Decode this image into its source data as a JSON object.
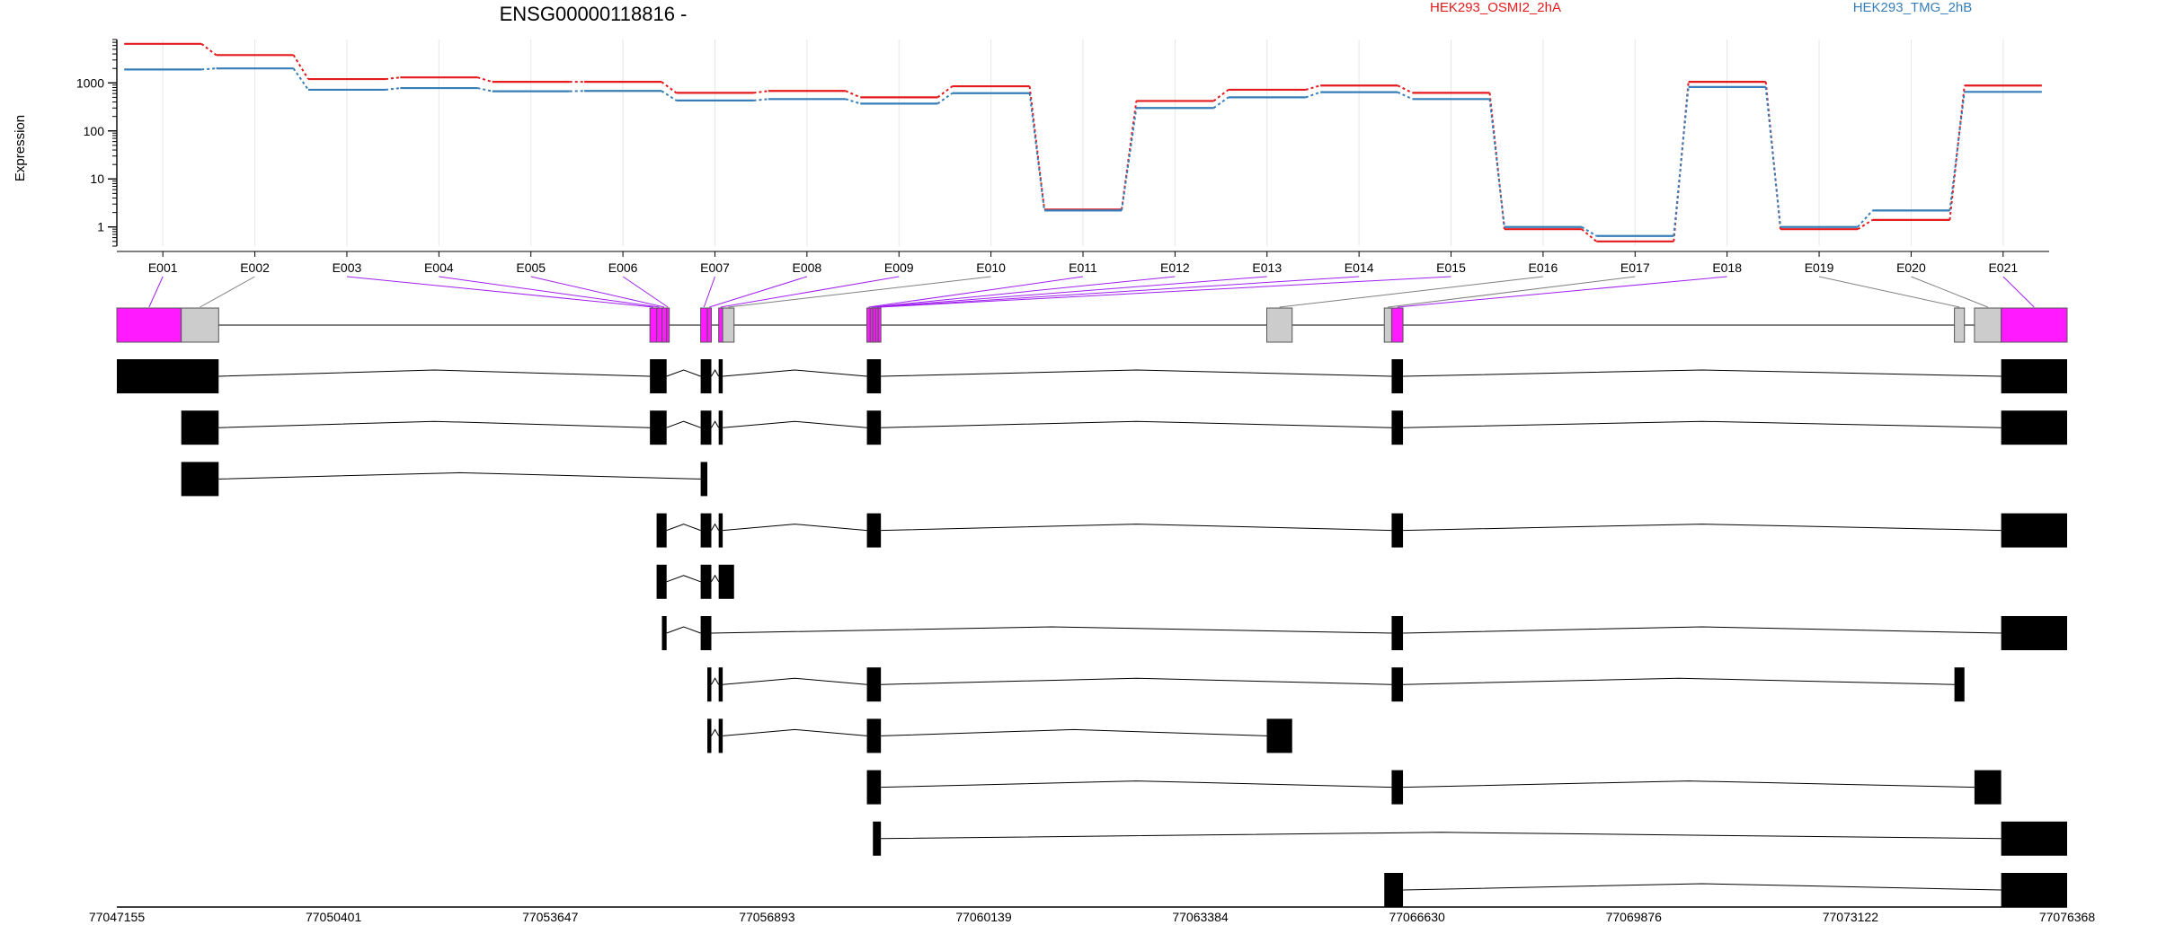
{
  "chart_data": {
    "type": "line",
    "title": "ENSG00000118816 -",
    "ylabel": "Expression",
    "yscale": "log",
    "yticks": [
      "1",
      "10",
      "100",
      "1000"
    ],
    "ylim": [
      0.4,
      8000
    ],
    "colors": {
      "HEK293_OSMI2_2hA": "#e41a1c",
      "HEK293_TMG_2hB": "#377eb8"
    },
    "legend": [
      "HEK293_OSMI2_2hA",
      "HEK293_TMG_2hB"
    ],
    "legend_placement": "top",
    "genomic_axis": {
      "start": 77047155,
      "end": 77076368,
      "tick_labels": [
        "77047155",
        "77050401",
        "77053647",
        "77056893",
        "77060139",
        "77063384",
        "77066630",
        "77069876",
        "77073122",
        "77076368"
      ]
    },
    "exons": [
      {
        "name": "E001",
        "start": 77047155,
        "end": 77048120,
        "highlight": true
      },
      {
        "name": "E002",
        "start": 77048120,
        "end": 77048680,
        "highlight": false
      },
      {
        "name": "E003",
        "start": 77055140,
        "end": 77055240,
        "highlight": true
      },
      {
        "name": "E004",
        "start": 77055240,
        "end": 77055320,
        "highlight": true
      },
      {
        "name": "E005",
        "start": 77055320,
        "end": 77055390,
        "highlight": true
      },
      {
        "name": "E006",
        "start": 77055390,
        "end": 77055430,
        "highlight": true
      },
      {
        "name": "E007",
        "start": 77055900,
        "end": 77056000,
        "highlight": true
      },
      {
        "name": "E008",
        "start": 77056000,
        "end": 77056060,
        "highlight": true
      },
      {
        "name": "E009",
        "start": 77056170,
        "end": 77056230,
        "highlight": true
      },
      {
        "name": "E010",
        "start": 77056230,
        "end": 77056400,
        "highlight": false
      },
      {
        "name": "E011",
        "start": 77058390,
        "end": 77058440,
        "highlight": true
      },
      {
        "name": "E012",
        "start": 77058440,
        "end": 77058480,
        "highlight": true
      },
      {
        "name": "E013",
        "start": 77058480,
        "end": 77058520,
        "highlight": true
      },
      {
        "name": "E014",
        "start": 77058520,
        "end": 77058560,
        "highlight": true
      },
      {
        "name": "E015",
        "start": 77058560,
        "end": 77058600,
        "highlight": true
      },
      {
        "name": "E016",
        "start": 77064380,
        "end": 77064760,
        "highlight": false
      },
      {
        "name": "E017",
        "start": 77066140,
        "end": 77066250,
        "highlight": false
      },
      {
        "name": "E018",
        "start": 77066250,
        "end": 77066420,
        "highlight": true
      },
      {
        "name": "E019",
        "start": 77074680,
        "end": 77074830,
        "highlight": false
      },
      {
        "name": "E020",
        "start": 77074980,
        "end": 77075380,
        "highlight": false
      },
      {
        "name": "E021",
        "start": 77075380,
        "end": 77076368,
        "highlight": true
      }
    ],
    "series": [
      {
        "name": "HEK293_OSMI2_2hA",
        "values": [
          6500,
          3800,
          1200,
          1300,
          1050,
          1050,
          620,
          680,
          500,
          850,
          2.3,
          420,
          720,
          880,
          620,
          0.9,
          0.5,
          1050,
          0.9,
          1.4,
          880
        ]
      },
      {
        "name": "HEK293_TMG_2hB",
        "values": [
          1900,
          2000,
          720,
          780,
          670,
          680,
          430,
          460,
          370,
          610,
          2.2,
          300,
          500,
          640,
          460,
          1.0,
          0.65,
          820,
          1.0,
          2.2,
          650
        ]
      }
    ],
    "transcripts": [
      [
        [
          77047155,
          77048680
        ],
        [
          77055140,
          77055390
        ],
        [
          77055900,
          77056060
        ],
        [
          77056170,
          77056230
        ],
        [
          77058390,
          77058600
        ],
        [
          77066250,
          77066420
        ],
        [
          77075380,
          77076368
        ]
      ],
      [
        [
          77048120,
          77048680
        ],
        [
          77055140,
          77055390
        ],
        [
          77055900,
          77056060
        ],
        [
          77056170,
          77056230
        ],
        [
          77058390,
          77058600
        ],
        [
          77066250,
          77066420
        ],
        [
          77075380,
          77076368
        ]
      ],
      [
        [
          77048120,
          77048680
        ],
        [
          77055900,
          77056000
        ]
      ],
      [
        [
          77055240,
          77055390
        ],
        [
          77055900,
          77056060
        ],
        [
          77056170,
          77056230
        ],
        [
          77058390,
          77058600
        ],
        [
          77066250,
          77066420
        ],
        [
          77075380,
          77076368
        ]
      ],
      [
        [
          77055240,
          77055390
        ],
        [
          77055900,
          77056060
        ],
        [
          77056170,
          77056400
        ]
      ],
      [
        [
          77055320,
          77055390
        ],
        [
          77055900,
          77056060
        ],
        [
          77066250,
          77066420
        ],
        [
          77075380,
          77076368
        ]
      ],
      [
        [
          77056000,
          77056060
        ],
        [
          77056170,
          77056230
        ],
        [
          77058390,
          77058600
        ],
        [
          77066250,
          77066420
        ],
        [
          77074680,
          77074830
        ]
      ],
      [
        [
          77056000,
          77056060
        ],
        [
          77056170,
          77056230
        ],
        [
          77058390,
          77058600
        ],
        [
          77064380,
          77064760
        ]
      ],
      [
        [
          77058390,
          77058600
        ],
        [
          77066250,
          77066420
        ],
        [
          77074980,
          77075380
        ]
      ],
      [
        [
          77058480,
          77058600
        ],
        [
          77075380,
          77076368
        ]
      ],
      [
        [
          77066140,
          77066420
        ],
        [
          77075380,
          77076368
        ]
      ]
    ]
  }
}
